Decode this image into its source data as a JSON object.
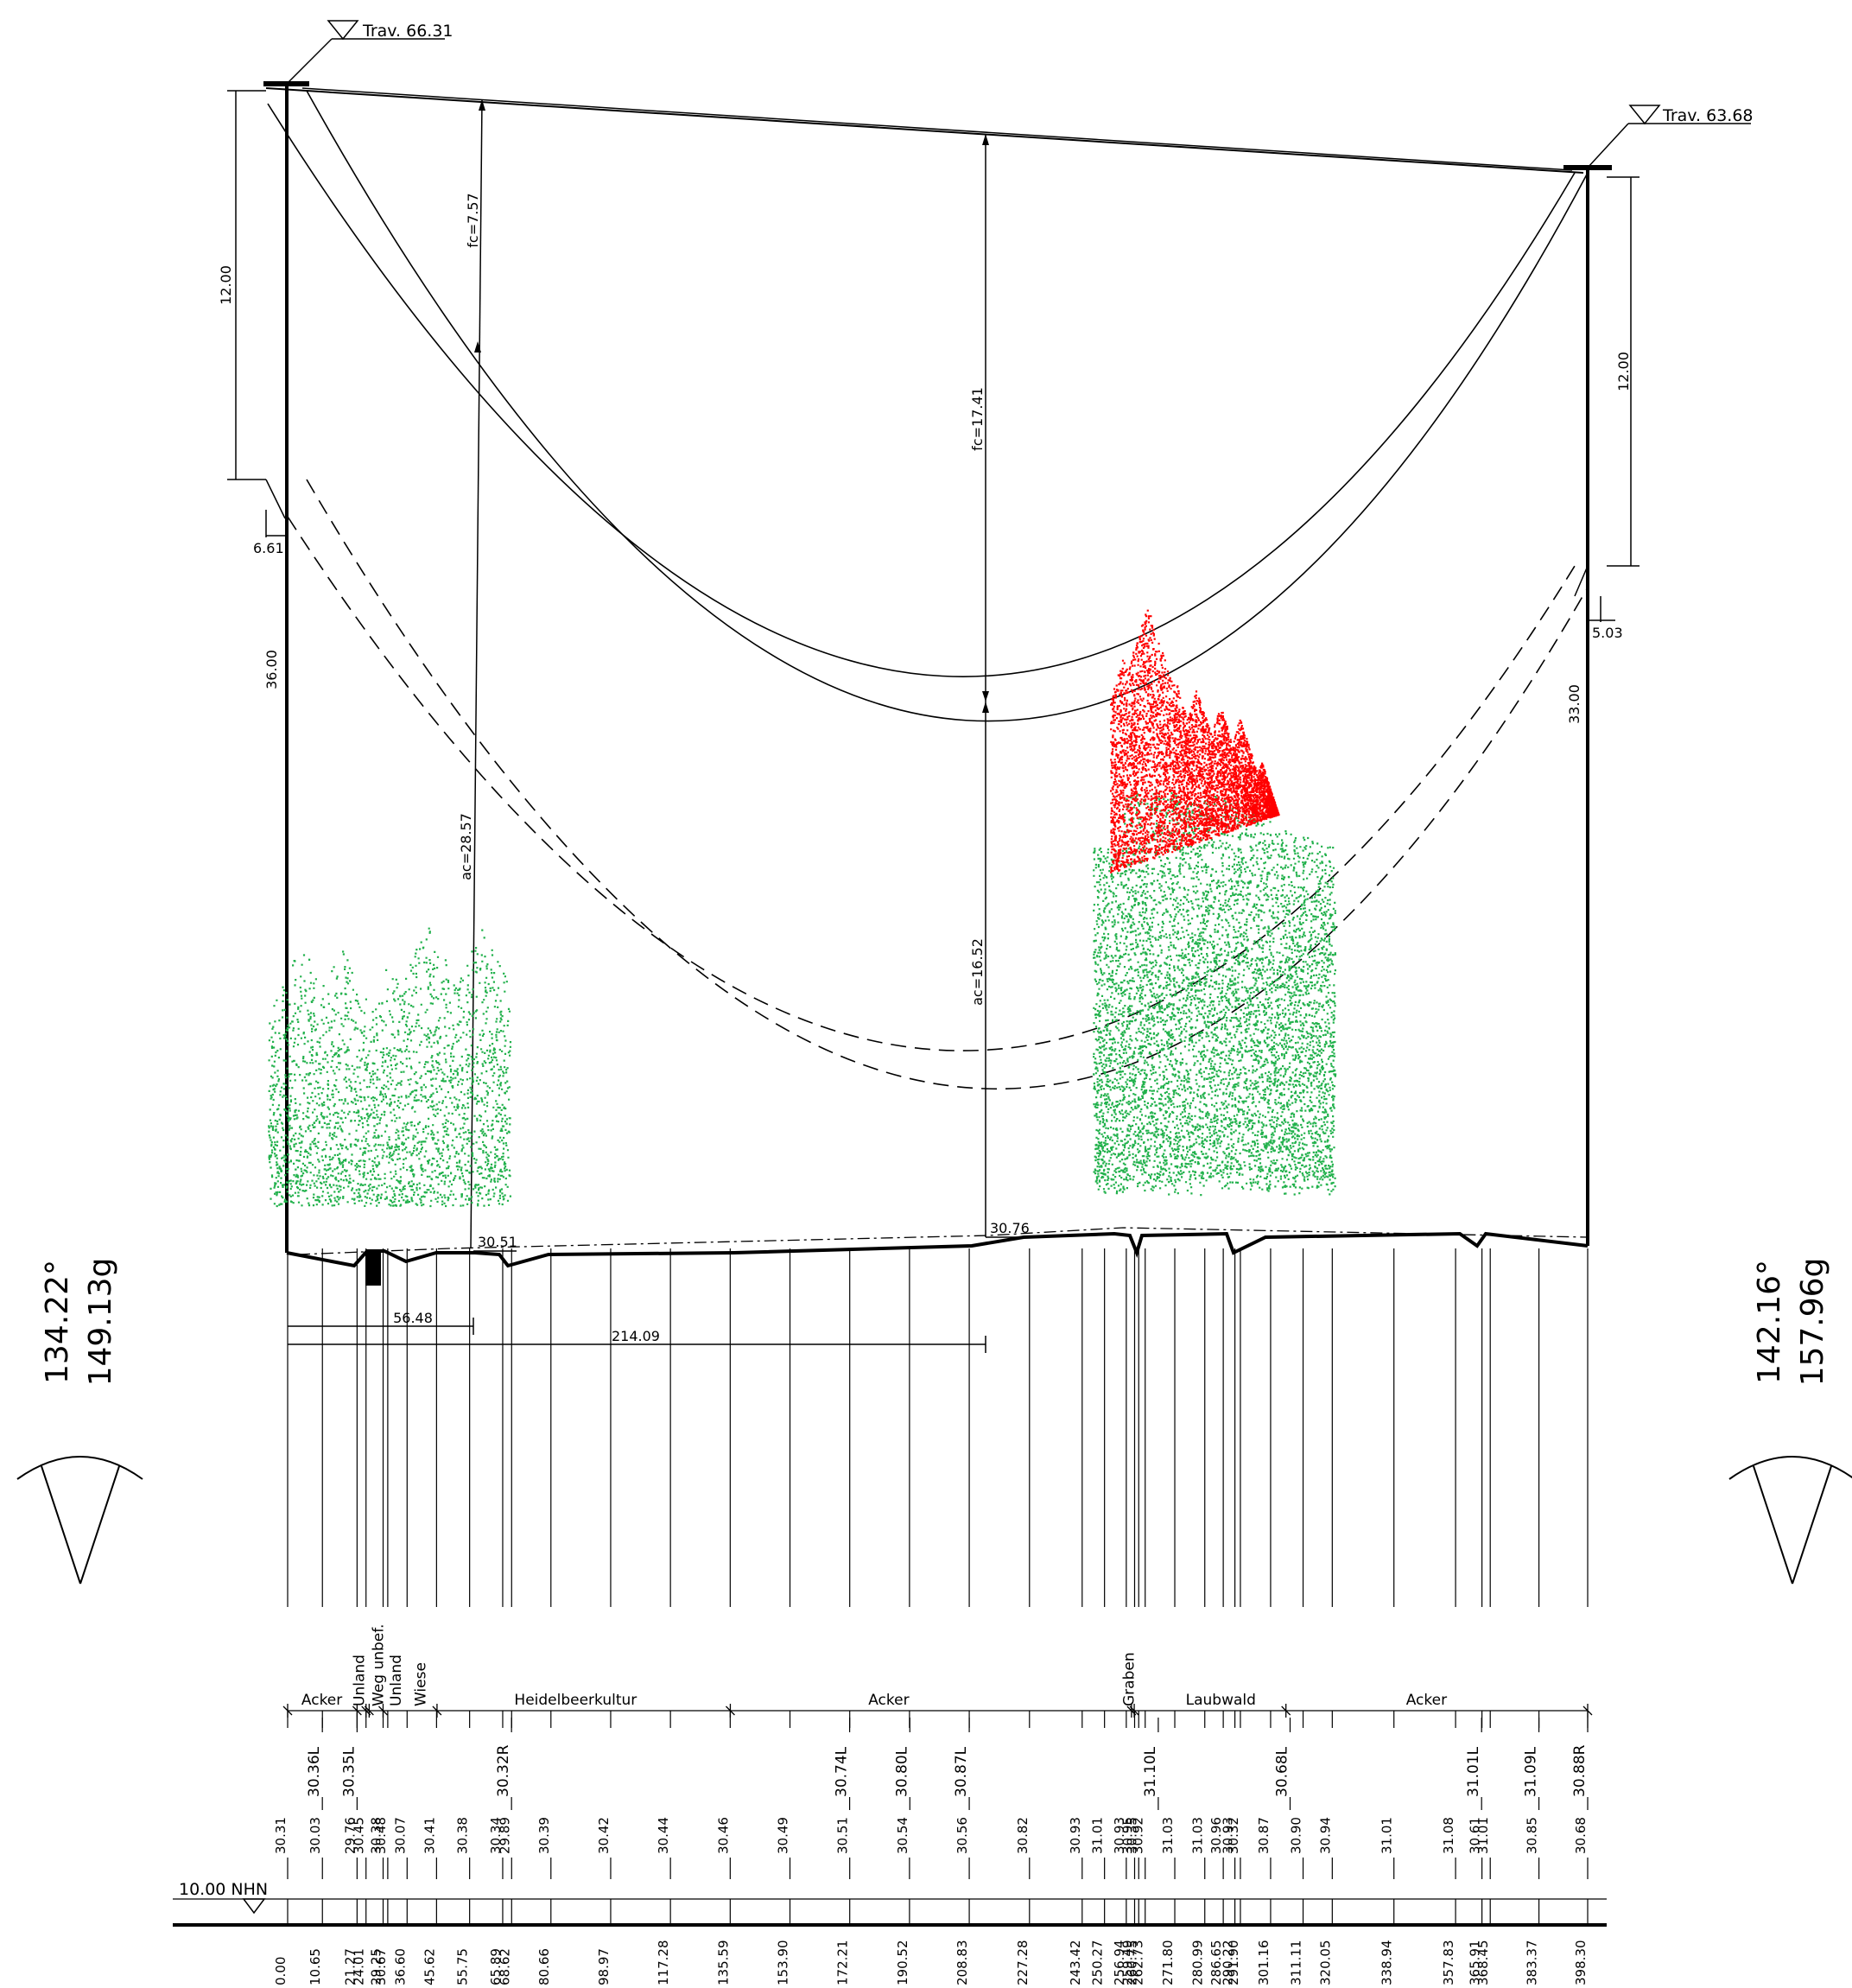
{
  "towers": {
    "left": {
      "label": "Trav. 66.31",
      "angle_deg": "134.22°",
      "angle_gon": "149.13g"
    },
    "right": {
      "label": "Trav. 63.68",
      "angle_deg": "142.16°",
      "angle_gon": "157.96g"
    }
  },
  "dimensions": {
    "left_top": "12.00",
    "left_offset": "6.61",
    "left_height": "36.00",
    "right_top": "12.00",
    "right_offset": "5.03",
    "right_height": "33.00",
    "fc_small": "fc=7.57",
    "fc_large": "fc=17.41",
    "ac_small": "ac=28.57",
    "ac_large": "ac=16.52",
    "ground_a": "30.51",
    "ground_b": "30.76",
    "dist_a": "56.48",
    "dist_b": "214.09"
  },
  "datum_label": "10.00 NHN",
  "landuse": [
    {
      "label": "Acker",
      "pos": 0.0263
    },
    {
      "label": "Unland",
      "pos": 0.0555,
      "vertical": true
    },
    {
      "label": "Weg unbef.",
      "pos": 0.0702,
      "vertical": true
    },
    {
      "label": "Unland",
      "pos": 0.0838,
      "vertical": true
    },
    {
      "label": "Wiese",
      "pos": 0.1028,
      "vertical": true
    },
    {
      "label": "Heidelbeerkultur",
      "pos": 0.2215
    },
    {
      "label": "Acker",
      "pos": 0.4624
    },
    {
      "label": "Graben",
      "pos": 0.6475,
      "vertical": true
    },
    {
      "label": "Laubwald",
      "pos": 0.7178
    },
    {
      "label": "Acker",
      "pos": 0.876
    }
  ],
  "landuse_boundaries": [
    0,
    0.0534,
    0.0603,
    0.0627,
    0.0734,
    0.1149,
    0.3405,
    0.6491,
    0.6512,
    0.7679,
    1
  ],
  "crossings": [
    {
      "label": "30.36L",
      "pos": 0.0267
    },
    {
      "label": "30.35L",
      "pos": 0.0534
    },
    {
      "label": "30.32R",
      "pos": 0.1722
    },
    {
      "label": "30.74L",
      "pos": 0.4323
    },
    {
      "label": "30.80L",
      "pos": 0.4786
    },
    {
      "label": "30.87L",
      "pos": 0.5243
    },
    {
      "label": "31.10L",
      "pos": 0.6697
    },
    {
      "label": "30.68L",
      "pos": 0.7711
    },
    {
      "label": "31.01L",
      "pos": 0.9184
    },
    {
      "label": "31.09L",
      "pos": 0.9625
    },
    {
      "label": "30.88R",
      "pos": 1.0
    }
  ],
  "stations": [
    {
      "elev": "30.31",
      "dist": "0.00"
    },
    {
      "elev": "30.03",
      "dist": "10.65"
    },
    {
      "elev": "29.76",
      "dist": "21.27"
    },
    {
      "elev": "30.45",
      "dist": "24.01"
    },
    {
      "elev": "30.38",
      "dist": "29.25"
    },
    {
      "elev": "30.48",
      "dist": "30.67"
    },
    {
      "elev": "30.07",
      "dist": "36.60"
    },
    {
      "elev": "30.41",
      "dist": "45.62"
    },
    {
      "elev": "30.38",
      "dist": "55.75"
    },
    {
      "elev": "30.34",
      "dist": "65.89"
    },
    {
      "elev": "29.89",
      "dist": "68.62"
    },
    {
      "elev": "30.39",
      "dist": "80.66"
    },
    {
      "elev": "30.42",
      "dist": "98.97"
    },
    {
      "elev": "30.44",
      "dist": "117.28"
    },
    {
      "elev": "30.46",
      "dist": "135.59"
    },
    {
      "elev": "30.49",
      "dist": "153.90"
    },
    {
      "elev": "30.51",
      "dist": "172.21"
    },
    {
      "elev": "30.54",
      "dist": "190.52"
    },
    {
      "elev": "30.56",
      "dist": "208.83"
    },
    {
      "elev": "30.82",
      "dist": "227.28"
    },
    {
      "elev": "30.93",
      "dist": "243.42"
    },
    {
      "elev": "31.01",
      "dist": "250.27"
    },
    {
      "elev": "30.93",
      "dist": "256.94"
    },
    {
      "elev": "30.95",
      "dist": "259.49"
    },
    {
      "elev": "30.35",
      "dist": "260.75"
    },
    {
      "elev": "30.92",
      "dist": "262.73"
    },
    {
      "elev": "31.03",
      "dist": "271.80"
    },
    {
      "elev": "31.03",
      "dist": "280.99"
    },
    {
      "elev": "30.96",
      "dist": "286.65"
    },
    {
      "elev": "30.93",
      "dist": "290.22"
    },
    {
      "elev": "30.32",
      "dist": "291.90"
    },
    {
      "elev": "30.87",
      "dist": "301.16"
    },
    {
      "elev": "30.90",
      "dist": "311.11"
    },
    {
      "elev": "30.94",
      "dist": "320.05"
    },
    {
      "elev": "31.01",
      "dist": "338.94"
    },
    {
      "elev": "31.08",
      "dist": "357.83"
    },
    {
      "elev": "30.61",
      "dist": "365.91"
    },
    {
      "elev": "31.01",
      "dist": "368.45"
    },
    {
      "elev": "30.85",
      "dist": "383.37"
    },
    {
      "elev": "30.68",
      "dist": "398.30"
    }
  ],
  "colors": {
    "vegetation": "#22b14c",
    "conflict": "#ff0000",
    "line": "#000000"
  }
}
